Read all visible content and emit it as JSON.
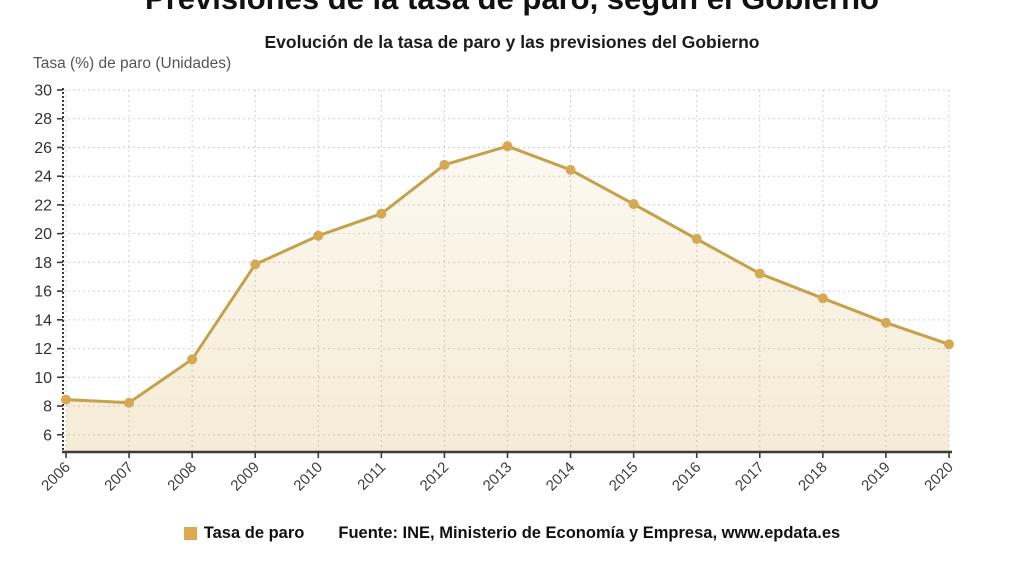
{
  "header": {
    "title": "Previsiones de la tasa de paro, según el Gobierno",
    "subtitle": "Evolución de la tasa de paro y las previsiones del Gobierno"
  },
  "axis": {
    "y_title": "Tasa (%) de paro (Unidades)"
  },
  "legend": {
    "label": "Tasa de paro",
    "swatch_color": "#DCA94E"
  },
  "source": {
    "text": "Fuente: INE, Ministerio de Economía y Empresa, www.epdata.es"
  },
  "colors": {
    "line": "#C6A14B",
    "marker": "#D7A853",
    "fill_top": "rgba(212,168,67,0.05)",
    "fill_bottom": "rgba(212,168,67,0.22)",
    "grid": "#cfcfcf",
    "axis": "#3b3b3b",
    "tick_text": "#3f3f3f",
    "ytick_text": "#333333"
  },
  "chart_data": {
    "type": "line",
    "title": "Previsiones de la tasa de paro, según el Gobierno",
    "subtitle": "Evolución de la tasa de paro y las previsiones del Gobierno",
    "xlabel": "",
    "ylabel": "Tasa (%) de paro (Unidades)",
    "categories": [
      "2006",
      "2007",
      "2008",
      "2009",
      "2010",
      "2011",
      "2012",
      "2013",
      "2014",
      "2015",
      "2016",
      "2017",
      "2018",
      "2019",
      "2020"
    ],
    "series": [
      {
        "name": "Tasa de paro",
        "values": [
          8.45,
          8.23,
          11.25,
          17.86,
          19.86,
          21.39,
          24.79,
          26.09,
          24.44,
          22.06,
          19.63,
          17.22,
          15.5,
          13.8,
          12.3
        ]
      }
    ],
    "ylim": [
      4.8,
      30
    ],
    "yticks": [
      6,
      8,
      10,
      12,
      14,
      16,
      18,
      20,
      22,
      24,
      26,
      28,
      30
    ],
    "grid": true,
    "marker": "circle",
    "area_fill": true,
    "legend_position": "bottom"
  }
}
